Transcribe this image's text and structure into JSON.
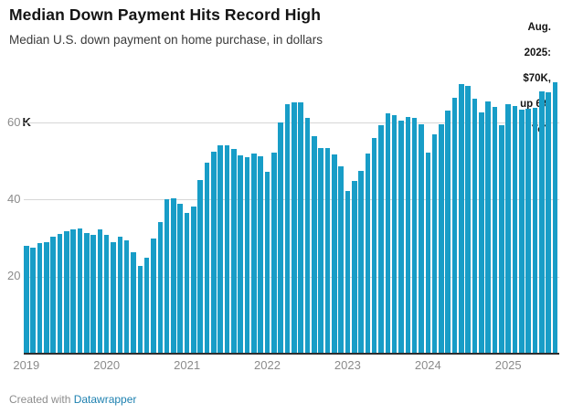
{
  "header": {
    "title": "Median Down Payment Hits Record High",
    "subtitle": "Median U.S. down payment on home purchase, in dollars"
  },
  "annotation": {
    "lines": [
      "Aug.",
      "2025:",
      "$70K,",
      "up 6%",
      "YoY"
    ],
    "text": "Aug. 2025: $70K, up 6% YoY"
  },
  "colors": {
    "bar": "#189dc7",
    "grid": "#d6d6d6",
    "baseline": "#2d2d2d",
    "axis_label": "#8b8b8b",
    "link": "#1e81b0"
  },
  "y_axis": {
    "ticks": [
      {
        "value": 20,
        "label": "20",
        "unit": ""
      },
      {
        "value": 40,
        "label": "40",
        "unit": ""
      },
      {
        "value": 60,
        "label": "60",
        "unit": "K"
      }
    ]
  },
  "x_axis": {
    "labels": [
      "2019",
      "2020",
      "2021",
      "2022",
      "2023",
      "2024",
      "2025"
    ]
  },
  "footer": {
    "created_with": "Created with ",
    "link_label": "Datawrapper"
  },
  "chart_data": {
    "type": "bar",
    "title": "Median Down Payment Hits Record High",
    "subtitle": "Median U.S. down payment on home purchase, in dollars",
    "unit": "USD thousands",
    "annotation": "Aug. 2025: $70K, up 6% YoY",
    "grid": "horizontal",
    "legend": "none",
    "ylim": [
      0,
      71.6
    ],
    "y_ticks": [
      20,
      40,
      60
    ],
    "x_tick_labels": [
      "2019",
      "2020",
      "2021",
      "2022",
      "2023",
      "2024",
      "2025"
    ],
    "x": [
      "2019-01",
      "2019-02",
      "2019-03",
      "2019-04",
      "2019-05",
      "2019-06",
      "2019-07",
      "2019-08",
      "2019-09",
      "2019-10",
      "2019-11",
      "2019-12",
      "2020-01",
      "2020-02",
      "2020-03",
      "2020-04",
      "2020-05",
      "2020-06",
      "2020-07",
      "2020-08",
      "2020-09",
      "2020-10",
      "2020-11",
      "2020-12",
      "2021-01",
      "2021-02",
      "2021-03",
      "2021-04",
      "2021-05",
      "2021-06",
      "2021-07",
      "2021-08",
      "2021-09",
      "2021-10",
      "2021-11",
      "2021-12",
      "2022-01",
      "2022-02",
      "2022-03",
      "2022-04",
      "2022-05",
      "2022-06",
      "2022-07",
      "2022-08",
      "2022-09",
      "2022-10",
      "2022-11",
      "2022-12",
      "2023-01",
      "2023-02",
      "2023-03",
      "2023-04",
      "2023-05",
      "2023-06",
      "2023-07",
      "2023-08",
      "2023-09",
      "2023-10",
      "2023-11",
      "2023-12",
      "2024-01",
      "2024-02",
      "2024-03",
      "2024-04",
      "2024-05",
      "2024-06",
      "2024-07",
      "2024-08",
      "2024-09",
      "2024-10",
      "2024-11",
      "2024-12",
      "2025-01",
      "2025-02",
      "2025-03",
      "2025-04",
      "2025-05",
      "2025-06",
      "2025-07",
      "2025-08"
    ],
    "values": [
      27.9,
      27.6,
      28.7,
      29.0,
      30.3,
      31.1,
      31.9,
      32.2,
      32.5,
      31.4,
      30.8,
      32.2,
      30.9,
      28.9,
      30.3,
      29.5,
      26.3,
      22.7,
      24.9,
      29.8,
      34.1,
      40.0,
      40.3,
      39.0,
      36.5,
      38.2,
      45.0,
      49.7,
      52.4,
      54.0,
      54.2,
      53.1,
      51.6,
      51.1,
      52.0,
      51.3,
      47.1,
      52.3,
      60.0,
      64.7,
      65.3,
      65.3,
      61.3,
      56.5,
      53.3,
      53.5,
      51.8,
      48.7,
      42.3,
      44.9,
      47.4,
      52.0,
      56.1,
      59.4,
      62.4,
      61.9,
      60.5,
      61.5,
      61.3,
      59.5,
      52.2,
      57.0,
      59.6,
      63.1,
      66.4,
      70.0,
      69.4,
      66.3,
      62.7,
      65.5,
      64.1,
      59.2,
      64.8,
      64.4,
      63.3,
      63.5,
      63.9,
      68.1,
      67.9,
      70.4
    ]
  }
}
